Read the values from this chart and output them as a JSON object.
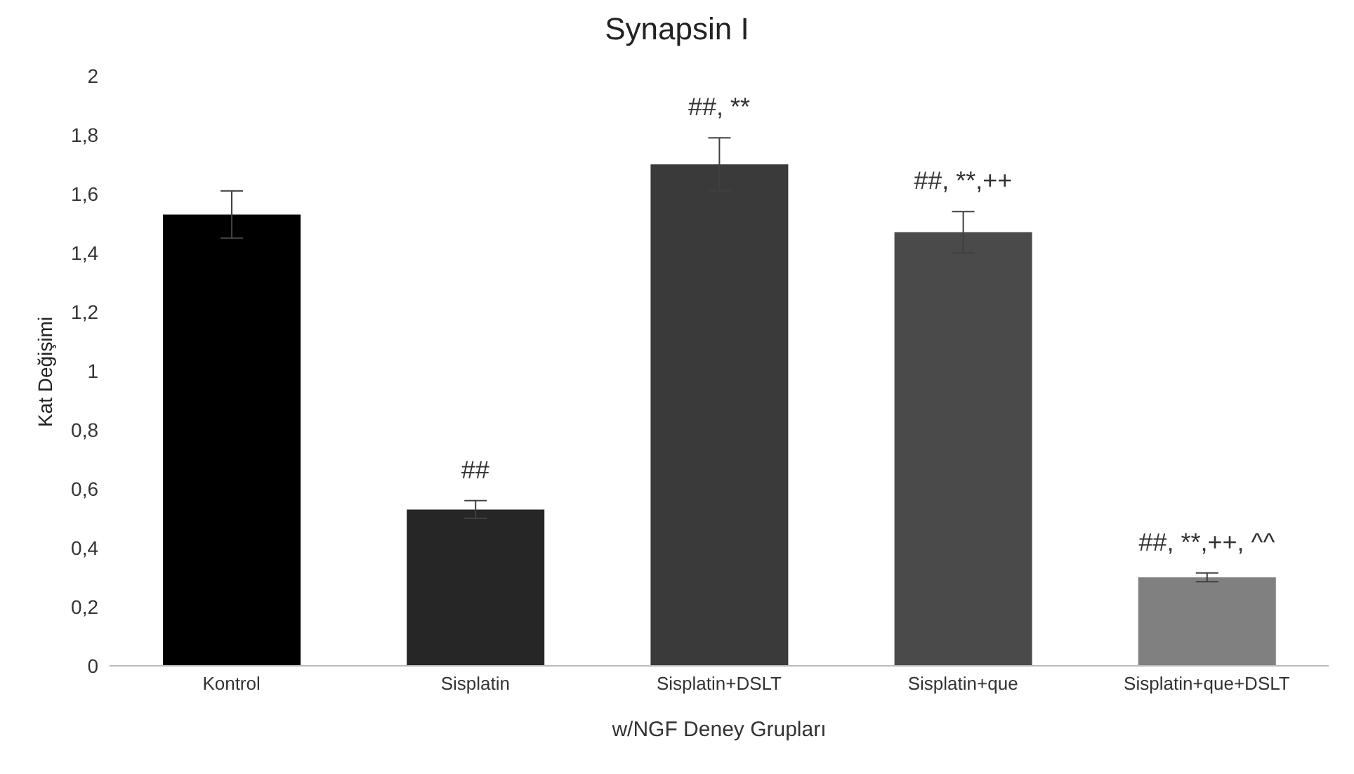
{
  "chart_data": {
    "type": "bar",
    "title": "Synapsin I",
    "xlabel": "w/NGF Deney Grupları",
    "ylabel": "Kat Değişimi",
    "categories": [
      "Kontrol",
      "Sisplatin",
      "Sisplatin+DSLT",
      "Sisplatin+que",
      "Sisplatin+que+DSLT"
    ],
    "values": [
      1.53,
      0.53,
      1.7,
      1.47,
      0.3
    ],
    "errors": [
      0.08,
      0.03,
      0.09,
      0.07,
      0.015
    ],
    "colors": [
      "#000000",
      "#262626",
      "#3a3a3a",
      "#4a4a4a",
      "#808080"
    ],
    "ylim": [
      0,
      2
    ],
    "yticks": [
      0,
      {
        "value": 0.2,
        "label": "0,2"
      },
      {
        "value": 0.4,
        "label": "0,4"
      },
      {
        "value": 0.6,
        "label": "0,6"
      },
      {
        "value": 0.8,
        "label": "0,8"
      },
      1,
      {
        "value": 1.2,
        "label": "1,2"
      },
      {
        "value": 1.4,
        "label": "1,4"
      },
      {
        "value": 1.6,
        "label": "1,6"
      },
      {
        "value": 1.8,
        "label": "1,8"
      },
      2
    ],
    "annotations": [
      {
        "text": "##",
        "x": "Sisplatin",
        "y": 0.53
      },
      {
        "text": "##, **",
        "x": "Sisplatin+DSLT",
        "y": 1.7
      },
      {
        "text": "##, **,++",
        "x": "Sisplatin+que",
        "y": 1.47
      },
      {
        "text": "##, **,++, ^^",
        "x": "Sisplatin+que+DSLT",
        "y": 0.3
      }
    ],
    "grid": false,
    "legend": false
  }
}
